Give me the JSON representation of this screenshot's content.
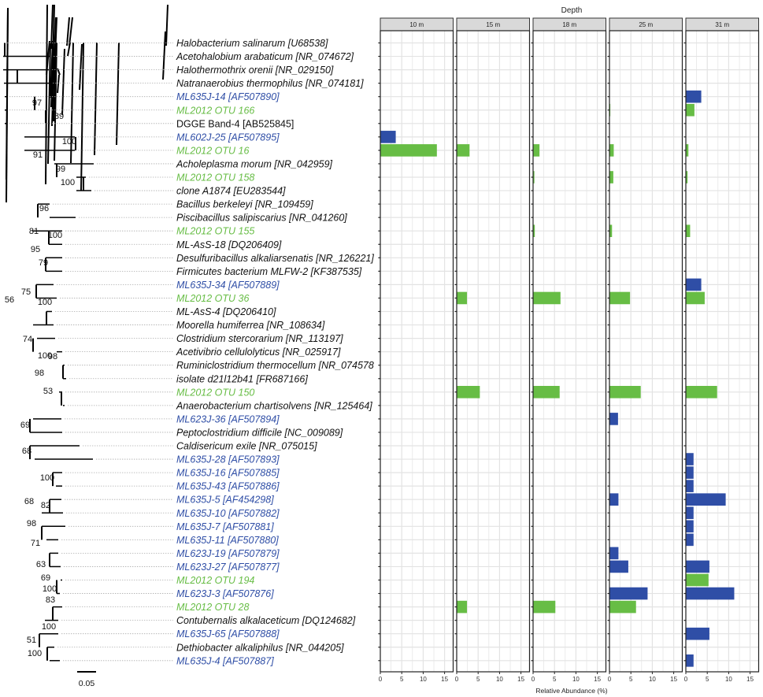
{
  "colors": {
    "otu": "#67bd45",
    "isolate": "#2f4ea6",
    "reference": "#111111",
    "facet_header_bg": "#d9d9d9",
    "grid": "#e3e3e3",
    "tree": "#000000",
    "leader": "#aaaaaa"
  },
  "tree": {
    "scale_label": "0.05",
    "taxa": [
      {
        "label": "Halobacterium salinarum [U68538]",
        "group": "reference"
      },
      {
        "label": "Acetohalobium arabaticum [NR_074672]",
        "group": "reference"
      },
      {
        "label": "Halothermothrix orenii [NR_029150]",
        "group": "reference"
      },
      {
        "label": "Natranaerobius thermophilus [NR_074181]",
        "group": "reference"
      },
      {
        "label": "ML635J-14 [AF507890]",
        "group": "isolate"
      },
      {
        "label": "ML2012 OTU 166",
        "group": "otu"
      },
      {
        "label": "DGGE Band-4 [AB525845]",
        "group": "reference",
        "plain": true
      },
      {
        "label": "ML602J-25 [AF507895]",
        "group": "isolate"
      },
      {
        "label": "ML2012 OTU 16",
        "group": "otu"
      },
      {
        "label": "Acholeplasma morum [NR_042959]",
        "group": "reference"
      },
      {
        "label": "ML2012 OTU 158",
        "group": "otu"
      },
      {
        "label": "clone A1874 [EU283544]",
        "group": "reference"
      },
      {
        "label": "Bacillus berkeleyi [NR_109459]",
        "group": "reference"
      },
      {
        "label": "Piscibacillus salipiscarius [NR_041260]",
        "group": "reference"
      },
      {
        "label": "ML2012 OTU 155",
        "group": "otu"
      },
      {
        "label": "ML-AsS-18  [DQ206409]",
        "group": "reference"
      },
      {
        "label": "Desulfuribacillus alkaliarsenatis [NR_126221]",
        "group": "reference"
      },
      {
        "label": "Firmicutes bacterium MLFW-2 [KF387535]",
        "group": "reference"
      },
      {
        "label": "ML635J-34 [AF507889]",
        "group": "isolate"
      },
      {
        "label": "ML2012 OTU 36",
        "group": "otu"
      },
      {
        "label": "ML-AsS-4  [DQ206410]",
        "group": "reference"
      },
      {
        "label": "Moorella humiferrea [NR_108634]",
        "group": "reference"
      },
      {
        "label": "Clostridium stercorarium [NR_113197]",
        "group": "reference"
      },
      {
        "label": "Acetivibrio cellulolyticus [NR_025917]",
        "group": "reference"
      },
      {
        "label": "Ruminiclostridium thermocellum [NR_074578",
        "group": "reference"
      },
      {
        "label": "isolate d21l12b41 [FR687166]",
        "group": "reference"
      },
      {
        "label": "ML2012 OTU 150",
        "group": "otu"
      },
      {
        "label": "Anaerobacterium chartisolvens [NR_125464]",
        "group": "reference"
      },
      {
        "label": "ML623J-36 [AF507894]",
        "group": "isolate"
      },
      {
        "label": "Peptoclostridium difficile [NC_009089]",
        "group": "reference"
      },
      {
        "label": "Caldisericum exile [NR_075015]",
        "group": "reference"
      },
      {
        "label": "ML635J-28 [AF507893]",
        "group": "isolate"
      },
      {
        "label": "ML635J-16 [AF507885]",
        "group": "isolate"
      },
      {
        "label": "ML635J-43 [AF507886]",
        "group": "isolate"
      },
      {
        "label": "ML635J-5 [AF454298]",
        "group": "isolate"
      },
      {
        "label": "ML635J-10 [AF507882]",
        "group": "isolate"
      },
      {
        "label": "ML635J-7 [AF507881]",
        "group": "isolate"
      },
      {
        "label": "ML635J-11 [AF507880]",
        "group": "isolate"
      },
      {
        "label": "ML623J-19 [AF507879]",
        "group": "isolate"
      },
      {
        "label": "ML623J-27 [AF507877]",
        "group": "isolate"
      },
      {
        "label": "ML2012 OTU 194",
        "group": "otu"
      },
      {
        "label": "ML623J-3 [AF507876]",
        "group": "isolate"
      },
      {
        "label": "ML2012 OTU 28",
        "group": "otu"
      },
      {
        "label": "Contubernalis alkalaceticum [DQ124682]",
        "group": "reference"
      },
      {
        "label": "ML635J-65 [AF507888]",
        "group": "isolate"
      },
      {
        "label": "Dethiobacter alkaliphilus [NR_044205]",
        "group": "reference"
      },
      {
        "label": "ML635J-4 [AF507887]",
        "group": "isolate"
      }
    ],
    "bootstrap": [
      "97",
      "89",
      "100",
      "91",
      "99",
      "100",
      "96",
      "81",
      "100",
      "95",
      "79",
      "75",
      "100",
      "56",
      "74",
      "100",
      "98",
      "98",
      "53",
      "69",
      "68",
      "100",
      "68",
      "82",
      "98",
      "71",
      "63",
      "69",
      "100",
      "83",
      "100",
      "51",
      "100"
    ]
  },
  "chart_data": {
    "type": "bar",
    "orientation": "horizontal",
    "title": "Depth",
    "xlabel": "Relative Abundance (%)",
    "ylabel": "",
    "xlim": [
      0,
      17
    ],
    "xticks": [
      0,
      5,
      10,
      15
    ],
    "grid": true,
    "facets": [
      "10 m",
      "15 m",
      "18 m",
      "25 m",
      "31 m"
    ],
    "rows": [
      "Halobacterium salinarum [U68538]",
      "Acetohalobium arabaticum [NR_074672]",
      "Halothermothrix orenii [NR_029150]",
      "Natranaerobius thermophilus [NR_074181]",
      "ML635J-14 [AF507890]",
      "ML2012 OTU 166",
      "DGGE Band-4 [AB525845]",
      "ML602J-25 [AF507895]",
      "ML2012 OTU 16",
      "Acholeplasma morum [NR_042959]",
      "ML2012 OTU 158",
      "clone A1874 [EU283544]",
      "Bacillus berkeleyi [NR_109459]",
      "Piscibacillus salipiscarius [NR_041260]",
      "ML2012 OTU 155",
      "ML-AsS-18  [DQ206409]",
      "Desulfuribacillus alkaliarsenatis [NR_126221]",
      "Firmicutes bacterium MLFW-2 [KF387535]",
      "ML635J-34 [AF507889]",
      "ML2012 OTU 36",
      "ML-AsS-4  [DQ206410]",
      "Moorella humiferrea [NR_108634]",
      "Clostridium stercorarium [NR_113197]",
      "Acetivibrio cellulolyticus [NR_025917]",
      "Ruminiclostridium thermocellum [NR_074578",
      "isolate d21l12b41 [FR687166]",
      "ML2012 OTU 150",
      "Anaerobacterium chartisolvens [NR_125464]",
      "ML623J-36 [AF507894]",
      "Peptoclostridium difficile [NC_009089]",
      "Caldisericum exile [NR_075015]",
      "ML635J-28 [AF507893]",
      "ML635J-16 [AF507885]",
      "ML635J-43 [AF507886]",
      "ML635J-5 [AF454298]",
      "ML635J-10 [AF507882]",
      "ML635J-7 [AF507881]",
      "ML635J-11 [AF507880]",
      "ML623J-19 [AF507879]",
      "ML623J-27 [AF507877]",
      "ML2012 OTU 194",
      "ML623J-3 [AF507876]",
      "ML2012 OTU 28",
      "Contubernalis alkalaceticum [DQ124682]",
      "ML635J-65 [AF507888]",
      "Dethiobacter alkaliphilus [NR_044205]",
      "ML635J-4 [AF507887]"
    ],
    "bars": [
      {
        "facet": "10 m",
        "row": "ML602J-25 [AF507895]",
        "value": 3.6,
        "group": "isolate"
      },
      {
        "facet": "10 m",
        "row": "ML2012 OTU 16",
        "value": 13.2,
        "group": "otu"
      },
      {
        "facet": "15 m",
        "row": "ML2012 OTU 16",
        "value": 3.0,
        "group": "otu"
      },
      {
        "facet": "15 m",
        "row": "ML2012 OTU 36",
        "value": 2.4,
        "group": "otu"
      },
      {
        "facet": "15 m",
        "row": "ML2012 OTU 150",
        "value": 5.4,
        "group": "otu"
      },
      {
        "facet": "15 m",
        "row": "ML2012 OTU 28",
        "value": 2.4,
        "group": "otu"
      },
      {
        "facet": "18 m",
        "row": "ML2012 OTU 16",
        "value": 1.5,
        "group": "otu"
      },
      {
        "facet": "18 m",
        "row": "ML2012 OTU 158",
        "value": 0.3,
        "group": "otu"
      },
      {
        "facet": "18 m",
        "row": "ML2012 OTU 155",
        "value": 0.4,
        "group": "otu"
      },
      {
        "facet": "18 m",
        "row": "ML2012 OTU 36",
        "value": 6.4,
        "group": "otu"
      },
      {
        "facet": "18 m",
        "row": "ML2012 OTU 150",
        "value": 6.2,
        "group": "otu"
      },
      {
        "facet": "18 m",
        "row": "ML2012 OTU 28",
        "value": 5.2,
        "group": "otu"
      },
      {
        "facet": "25 m",
        "row": "ML2012 OTU 166",
        "value": 0.2,
        "group": "otu"
      },
      {
        "facet": "25 m",
        "row": "ML2012 OTU 16",
        "value": 1.0,
        "group": "otu"
      },
      {
        "facet": "25 m",
        "row": "ML2012 OTU 158",
        "value": 0.9,
        "group": "otu"
      },
      {
        "facet": "25 m",
        "row": "ML2012 OTU 155",
        "value": 0.6,
        "group": "otu"
      },
      {
        "facet": "25 m",
        "row": "ML2012 OTU 36",
        "value": 4.8,
        "group": "otu"
      },
      {
        "facet": "25 m",
        "row": "ML2012 OTU 150",
        "value": 7.3,
        "group": "otu"
      },
      {
        "facet": "25 m",
        "row": "ML623J-36 [AF507894]",
        "value": 2.0,
        "group": "isolate"
      },
      {
        "facet": "25 m",
        "row": "ML635J-5 [AF454298]",
        "value": 2.1,
        "group": "isolate"
      },
      {
        "facet": "25 m",
        "row": "ML623J-19 [AF507879]",
        "value": 2.1,
        "group": "isolate"
      },
      {
        "facet": "25 m",
        "row": "ML623J-27 [AF507877]",
        "value": 4.4,
        "group": "isolate"
      },
      {
        "facet": "25 m",
        "row": "ML623J-3 [AF507876]",
        "value": 8.9,
        "group": "isolate"
      },
      {
        "facet": "25 m",
        "row": "ML2012 OTU 28",
        "value": 6.2,
        "group": "otu"
      },
      {
        "facet": "31 m",
        "row": "ML635J-14 [AF507890]",
        "value": 3.6,
        "group": "isolate"
      },
      {
        "facet": "31 m",
        "row": "ML2012 OTU 166",
        "value": 2.0,
        "group": "otu"
      },
      {
        "facet": "31 m",
        "row": "ML2012 OTU 16",
        "value": 0.6,
        "group": "otu"
      },
      {
        "facet": "31 m",
        "row": "ML2012 OTU 158",
        "value": 0.4,
        "group": "otu"
      },
      {
        "facet": "31 m",
        "row": "ML2012 OTU 155",
        "value": 1.0,
        "group": "otu"
      },
      {
        "facet": "31 m",
        "row": "ML635J-34 [AF507889]",
        "value": 3.6,
        "group": "isolate"
      },
      {
        "facet": "31 m",
        "row": "ML2012 OTU 36",
        "value": 4.4,
        "group": "otu"
      },
      {
        "facet": "31 m",
        "row": "ML2012 OTU 150",
        "value": 7.3,
        "group": "otu"
      },
      {
        "facet": "31 m",
        "row": "ML635J-28 [AF507893]",
        "value": 1.8,
        "group": "isolate"
      },
      {
        "facet": "31 m",
        "row": "ML635J-16 [AF507885]",
        "value": 1.8,
        "group": "isolate"
      },
      {
        "facet": "31 m",
        "row": "ML635J-43 [AF507886]",
        "value": 1.8,
        "group": "isolate"
      },
      {
        "facet": "31 m",
        "row": "ML635J-5 [AF454298]",
        "value": 9.3,
        "group": "isolate"
      },
      {
        "facet": "31 m",
        "row": "ML635J-10 [AF507882]",
        "value": 1.8,
        "group": "isolate"
      },
      {
        "facet": "31 m",
        "row": "ML635J-7 [AF507881]",
        "value": 1.8,
        "group": "isolate"
      },
      {
        "facet": "31 m",
        "row": "ML635J-11 [AF507880]",
        "value": 1.8,
        "group": "isolate"
      },
      {
        "facet": "31 m",
        "row": "ML623J-27 [AF507877]",
        "value": 5.5,
        "group": "isolate"
      },
      {
        "facet": "31 m",
        "row": "ML2012 OTU 194",
        "value": 5.3,
        "group": "otu"
      },
      {
        "facet": "31 m",
        "row": "ML623J-3 [AF507876]",
        "value": 11.3,
        "group": "isolate"
      },
      {
        "facet": "31 m",
        "row": "ML635J-65 [AF507888]",
        "value": 5.5,
        "group": "isolate"
      },
      {
        "facet": "31 m",
        "row": "ML635J-4 [AF507887]",
        "value": 1.8,
        "group": "isolate"
      }
    ]
  }
}
